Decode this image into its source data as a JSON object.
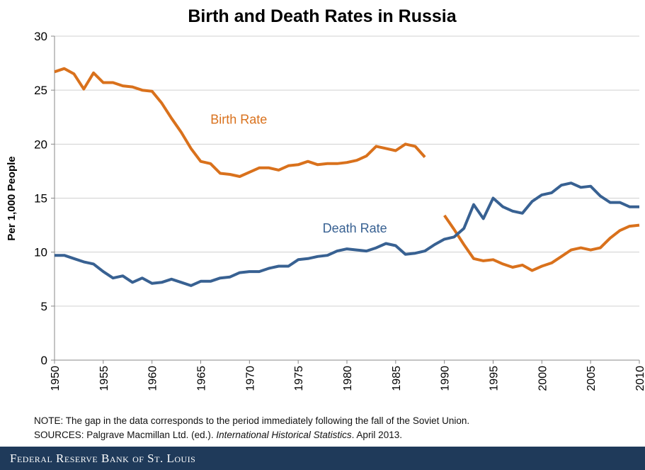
{
  "chart_data": {
    "type": "line",
    "title": "Birth and Death Rates in Russia",
    "xlabel": "",
    "ylabel": "Per 1,000 People",
    "xlim": [
      1950,
      2010
    ],
    "ylim": [
      0,
      30
    ],
    "xticks": [
      1950,
      1955,
      1960,
      1965,
      1970,
      1975,
      1980,
      1985,
      1990,
      1995,
      2000,
      2005,
      2010
    ],
    "yticks": [
      0,
      5,
      10,
      15,
      20,
      25,
      30
    ],
    "grid": "horizontal",
    "series": [
      {
        "name": "Birth Rate",
        "color": "#d9711c",
        "segments": [
          {
            "x": [
              1950,
              1951,
              1952,
              1953,
              1954,
              1955,
              1956,
              1957,
              1958,
              1959,
              1960,
              1961,
              1962,
              1963,
              1964,
              1965,
              1966,
              1967,
              1968,
              1969,
              1970,
              1971,
              1972,
              1973,
              1974,
              1975,
              1976,
              1977,
              1978,
              1979,
              1980,
              1981,
              1982,
              1983,
              1984,
              1985,
              1986,
              1987,
              1988
            ],
            "y": [
              26.7,
              27.0,
              26.5,
              25.1,
              26.6,
              25.7,
              25.7,
              25.4,
              25.3,
              25.0,
              24.9,
              23.8,
              22.4,
              21.1,
              19.6,
              18.4,
              18.2,
              17.3,
              17.2,
              17.0,
              17.4,
              17.8,
              17.8,
              17.6,
              18.0,
              18.1,
              18.4,
              18.1,
              18.2,
              18.2,
              18.3,
              18.5,
              18.9,
              19.8,
              19.6,
              19.4,
              20.0,
              19.8,
              18.8
            ]
          },
          {
            "x": [
              1990,
              1991,
              1992,
              1993,
              1994,
              1995,
              1996,
              1997,
              1998,
              1999,
              2000,
              2001,
              2002,
              2003,
              2004,
              2005,
              2006,
              2007,
              2008,
              2009,
              2010
            ],
            "y": [
              13.4,
              12.1,
              10.7,
              9.4,
              9.2,
              9.3,
              8.9,
              8.6,
              8.8,
              8.3,
              8.7,
              9.0,
              9.6,
              10.2,
              10.4,
              10.2,
              10.4,
              11.3,
              12.0,
              12.4,
              12.5
            ]
          }
        ]
      },
      {
        "name": "Death Rate",
        "color": "#386192",
        "segments": [
          {
            "x": [
              1950,
              1951,
              1952,
              1953,
              1954,
              1955,
              1956,
              1957,
              1958,
              1959,
              1960,
              1961,
              1962,
              1963,
              1964,
              1965,
              1966,
              1967,
              1968,
              1969,
              1970,
              1971,
              1972,
              1973,
              1974,
              1975,
              1976,
              1977,
              1978,
              1979,
              1980,
              1981,
              1982,
              1983,
              1984,
              1985,
              1986,
              1987,
              1988,
              1989,
              1990,
              1991,
              1992,
              1993,
              1994,
              1995,
              1996,
              1997,
              1998,
              1999,
              2000,
              2001,
              2002,
              2003,
              2004,
              2005,
              2006,
              2007,
              2008,
              2009,
              2010
            ],
            "y": [
              9.7,
              9.7,
              9.4,
              9.1,
              8.9,
              8.2,
              7.6,
              7.8,
              7.2,
              7.6,
              7.1,
              7.2,
              7.5,
              7.2,
              6.9,
              7.3,
              7.3,
              7.6,
              7.7,
              8.1,
              8.2,
              8.2,
              8.5,
              8.7,
              8.7,
              9.3,
              9.4,
              9.6,
              9.7,
              10.1,
              10.3,
              10.2,
              10.1,
              10.4,
              10.8,
              10.6,
              9.8,
              9.9,
              10.1,
              10.7,
              11.2,
              11.4,
              12.2,
              14.4,
              13.1,
              15.0,
              14.2,
              13.8,
              13.6,
              14.7,
              15.3,
              15.5,
              16.2,
              16.4,
              16.0,
              16.1,
              15.2,
              14.6,
              14.6,
              14.2,
              14.2
            ]
          }
        ]
      }
    ],
    "annotations": [
      {
        "text": "Birth Rate",
        "x": 1966,
        "y": 21.9,
        "color": "#d9711c"
      },
      {
        "text": "Death Rate",
        "x": 1977.5,
        "y": 11.8,
        "color": "#386192"
      }
    ]
  },
  "notes": {
    "note_label": "NOTE:",
    "note_text": " The gap in the data corresponds to the period immediately following the fall of the Soviet Union.",
    "sources_label": "SOURCES:",
    "sources_pre": " Palgrave Macmillan Ltd. (ed.). ",
    "sources_italic": "International Historical Statistics",
    "sources_post": ". April 2013."
  },
  "footer": {
    "text": "Federal Reserve Bank of St. Louis"
  }
}
